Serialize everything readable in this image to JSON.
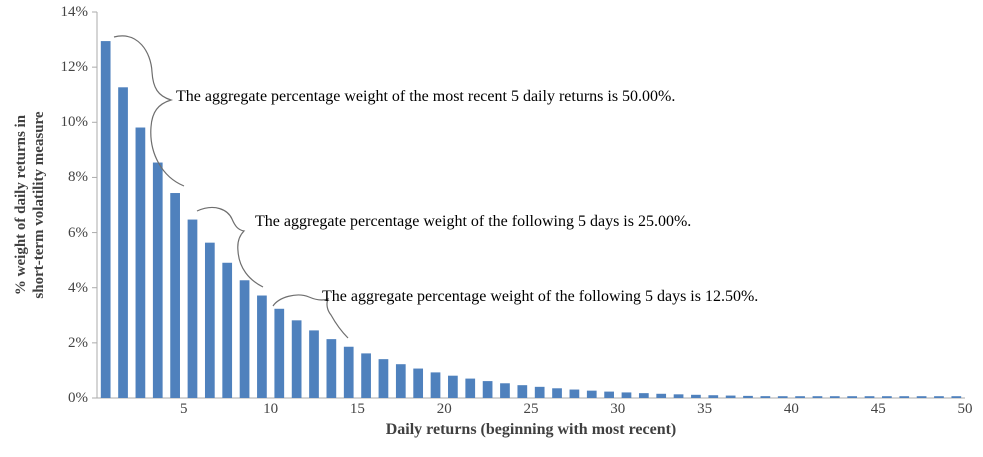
{
  "chart_data": {
    "type": "bar",
    "title": "",
    "xlabel": "Daily returns (beginning with most recent)",
    "ylabel": "% weight of daily returns in short-term volatility measure",
    "x_range": [
      1,
      50
    ],
    "values": [
      12.945,
      11.269,
      9.81,
      8.54,
      7.434,
      6.472,
      5.634,
      4.905,
      4.27,
      3.717,
      3.236,
      2.817,
      2.452,
      2.135,
      1.859,
      1.618,
      1.409,
      1.226,
      1.068,
      0.929,
      0.809,
      0.704,
      0.613,
      0.534,
      0.465,
      0.405,
      0.352,
      0.307,
      0.267,
      0.232,
      0.202,
      0.176,
      0.153,
      0.133,
      0.116,
      0.101,
      0.088,
      0.077,
      0.067,
      0.058,
      0.05,
      0.044,
      0.038,
      0.033,
      0.029,
      0.025,
      0.022,
      0.019,
      0.017,
      0.014
    ],
    "xticks": [
      5,
      10,
      15,
      20,
      25,
      30,
      35,
      40,
      45,
      50
    ],
    "yticks": [
      0,
      2,
      4,
      6,
      8,
      10,
      12,
      14
    ],
    "ytick_suffix": "%",
    "ylim": [
      0,
      14
    ],
    "grid": false,
    "legend": "none",
    "bar_color": "#4F81BD",
    "axis_color": "#ABABAB",
    "tick_label_color": "#444444",
    "annotations": [
      {
        "text": "The aggregate percentage weight of the most recent 5 daily returns is 50.00%."
      },
      {
        "text": "The aggregate percentage weight of the following 5 days is 25.00%."
      },
      {
        "text": "The aggregate percentage weight of the following 5 days is 12.50%."
      }
    ]
  }
}
